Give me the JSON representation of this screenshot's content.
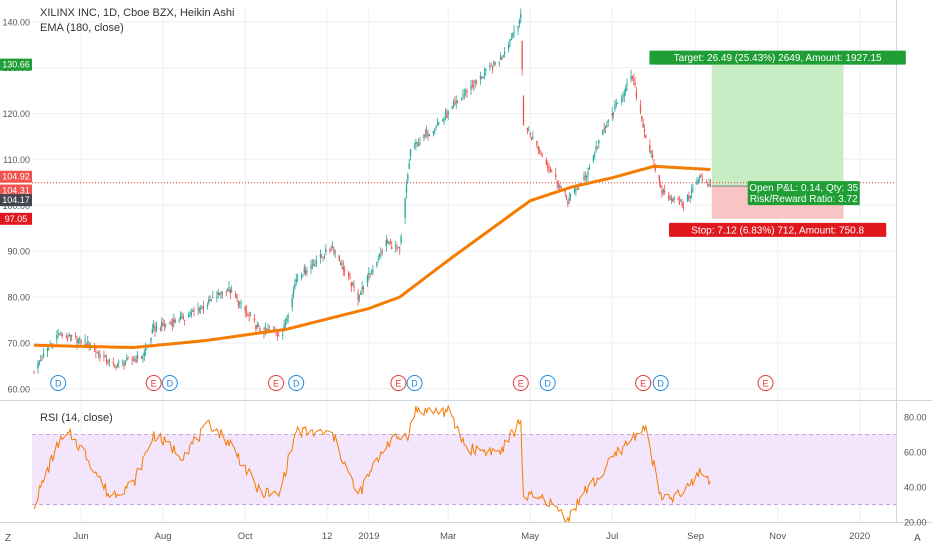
{
  "chart_data": [
    {
      "type": "candlestick",
      "title": "XILINX INC, 1D, Cboe BZX, Heikin Ashi",
      "indicator_label": "EMA (180, close)",
      "colors": {
        "up": "#26a69a",
        "down": "#ef5350",
        "ema": "#f57c00",
        "target_zone": "#c8ecc4",
        "stop_zone": "#f9c4c4",
        "target_label_bg": "#1e9e34",
        "stop_label_bg": "#e0181e",
        "current_line": "#e53935"
      },
      "ylim": [
        58,
        143
      ],
      "price_ticks": [
        "60.00",
        "70.00",
        "80.00",
        "90.00",
        "100.00",
        "110.00",
        "120.00",
        "130.00",
        "140.00"
      ],
      "date_ticks": [
        "Jun",
        "Aug",
        "Oct",
        "12",
        "2019",
        "Mar",
        "May",
        "Jul",
        "Sep",
        "Nov",
        "2020"
      ],
      "price_key_points": [
        {
          "date": "2018-04-27",
          "value": 64
        },
        {
          "date": "2018-05-15",
          "value": 72
        },
        {
          "date": "2018-06-05",
          "value": 70
        },
        {
          "date": "2018-06-25",
          "value": 65
        },
        {
          "date": "2018-07-17",
          "value": 67
        },
        {
          "date": "2018-07-25",
          "value": 73
        },
        {
          "date": "2018-08-20",
          "value": 76
        },
        {
          "date": "2018-09-05",
          "value": 79
        },
        {
          "date": "2018-09-18",
          "value": 82
        },
        {
          "date": "2018-10-11",
          "value": 73
        },
        {
          "date": "2018-10-29",
          "value": 72
        },
        {
          "date": "2018-11-08",
          "value": 84
        },
        {
          "date": "2018-12-05",
          "value": 91
        },
        {
          "date": "2018-12-24",
          "value": 80
        },
        {
          "date": "2019-01-14",
          "value": 92
        },
        {
          "date": "2019-01-24",
          "value": 90
        },
        {
          "date": "2019-02-01",
          "value": 112
        },
        {
          "date": "2019-03-01",
          "value": 120
        },
        {
          "date": "2019-03-15",
          "value": 125
        },
        {
          "date": "2019-04-09",
          "value": 132
        },
        {
          "date": "2019-04-24",
          "value": 141
        },
        {
          "date": "2019-04-26",
          "value": 118
        },
        {
          "date": "2019-05-08",
          "value": 112
        },
        {
          "date": "2019-05-29",
          "value": 101
        },
        {
          "date": "2019-06-11",
          "value": 106
        },
        {
          "date": "2019-06-21",
          "value": 114
        },
        {
          "date": "2019-07-03",
          "value": 121
        },
        {
          "date": "2019-07-16",
          "value": 128
        },
        {
          "date": "2019-07-26",
          "value": 115
        },
        {
          "date": "2019-08-07",
          "value": 103
        },
        {
          "date": "2019-08-23",
          "value": 100
        },
        {
          "date": "2019-09-04",
          "value": 106
        },
        {
          "date": "2019-09-12",
          "value": 104.5
        }
      ],
      "ema_key_points": [
        {
          "date": "2018-04-27",
          "value": 69.5
        },
        {
          "date": "2018-07-10",
          "value": 69
        },
        {
          "date": "2018-09-01",
          "value": 70.5
        },
        {
          "date": "2018-11-01",
          "value": 73
        },
        {
          "date": "2019-01-01",
          "value": 77.5
        },
        {
          "date": "2019-01-24",
          "value": 80
        },
        {
          "date": "2019-03-01",
          "value": 88
        },
        {
          "date": "2019-05-01",
          "value": 101
        },
        {
          "date": "2019-06-01",
          "value": 104
        },
        {
          "date": "2019-07-01",
          "value": 106
        },
        {
          "date": "2019-08-01",
          "value": 108.5
        },
        {
          "date": "2019-09-12",
          "value": 107.8
        }
      ],
      "price_labels": [
        {
          "text": "130.66",
          "value": 130.66,
          "color": "#1e9e34"
        },
        {
          "text": "104.92",
          "value": 104.92,
          "color": "#ef5350"
        },
        {
          "text": "104.31",
          "value": 104.31,
          "color": "#ef5350"
        },
        {
          "text": "104.17",
          "value": 104.17,
          "color": "#434651"
        },
        {
          "text": "97.05",
          "value": 97.05,
          "color": "#e0181e"
        }
      ],
      "position": {
        "start_date": "2019-09-13",
        "end_date": "2019-12-20",
        "entry": 104.17,
        "target_price": 130.66,
        "stop_price": 97.05,
        "target_label": "Target: 26.49 (25.43%) 2649, Amount: 1927.15",
        "stop_label": "Stop: 7.12 (6.83%) 712, Amount: 750.8",
        "pl_label": "Open P&L: 0.14, Qty: 35",
        "rr_label": "Risk/Reward Ratio: 3.72"
      },
      "events": [
        {
          "type": "D",
          "date": "2018-05-15"
        },
        {
          "type": "E",
          "date": "2018-07-25"
        },
        {
          "type": "D",
          "date": "2018-08-06"
        },
        {
          "type": "E",
          "date": "2018-10-24"
        },
        {
          "type": "D",
          "date": "2018-11-08"
        },
        {
          "type": "E",
          "date": "2019-01-23"
        },
        {
          "type": "D",
          "date": "2019-02-04"
        },
        {
          "type": "E",
          "date": "2019-04-24"
        },
        {
          "type": "D",
          "date": "2019-05-14"
        },
        {
          "type": "E",
          "date": "2019-07-24"
        },
        {
          "type": "D",
          "date": "2019-08-06"
        },
        {
          "type": "E",
          "date": "2019-10-23"
        }
      ]
    },
    {
      "type": "line",
      "title": "RSI (14, close)",
      "ylim": [
        20,
        88
      ],
      "band": [
        30,
        70
      ],
      "ticks": [
        "20.00",
        "40.00",
        "60.00",
        "80.00"
      ],
      "colors": {
        "line": "#f57c00",
        "band": "#f3e5fc",
        "band_line": "#c9a6dc"
      },
      "key_points": [
        {
          "date": "2018-04-27",
          "value": 30
        },
        {
          "date": "2018-05-15",
          "value": 65
        },
        {
          "date": "2018-05-24",
          "value": 70
        },
        {
          "date": "2018-06-05",
          "value": 58
        },
        {
          "date": "2018-06-22",
          "value": 35
        },
        {
          "date": "2018-07-10",
          "value": 42
        },
        {
          "date": "2018-07-25",
          "value": 70
        },
        {
          "date": "2018-08-15",
          "value": 58
        },
        {
          "date": "2018-09-05",
          "value": 76
        },
        {
          "date": "2018-09-20",
          "value": 65
        },
        {
          "date": "2018-10-11",
          "value": 38
        },
        {
          "date": "2018-10-26",
          "value": 35
        },
        {
          "date": "2018-11-08",
          "value": 72
        },
        {
          "date": "2018-12-05",
          "value": 70
        },
        {
          "date": "2018-12-24",
          "value": 35
        },
        {
          "date": "2019-01-14",
          "value": 65
        },
        {
          "date": "2019-01-30",
          "value": 70
        },
        {
          "date": "2019-02-05",
          "value": 84
        },
        {
          "date": "2019-03-01",
          "value": 83
        },
        {
          "date": "2019-03-15",
          "value": 62
        },
        {
          "date": "2019-04-09",
          "value": 60
        },
        {
          "date": "2019-04-24",
          "value": 78
        },
        {
          "date": "2019-04-26",
          "value": 35
        },
        {
          "date": "2019-05-14",
          "value": 32
        },
        {
          "date": "2019-05-29",
          "value": 22
        },
        {
          "date": "2019-06-11",
          "value": 38
        },
        {
          "date": "2019-06-21",
          "value": 45
        },
        {
          "date": "2019-07-03",
          "value": 58
        },
        {
          "date": "2019-07-25",
          "value": 75
        },
        {
          "date": "2019-08-07",
          "value": 32
        },
        {
          "date": "2019-08-23",
          "value": 36
        },
        {
          "date": "2019-09-04",
          "value": 49
        },
        {
          "date": "2019-09-12",
          "value": 44
        }
      ]
    }
  ],
  "toolbar": {
    "left_glyph": "Z",
    "right_glyph": "A"
  }
}
